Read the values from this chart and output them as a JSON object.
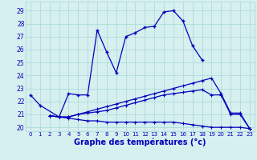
{
  "xlabel": "Graphe des températures (°c)",
  "x_ticks": [
    0,
    1,
    2,
    3,
    4,
    5,
    6,
    7,
    8,
    9,
    10,
    11,
    12,
    13,
    14,
    15,
    16,
    17,
    18,
    19,
    20,
    21,
    22,
    23
  ],
  "ylim": [
    19.7,
    29.7
  ],
  "xlim": [
    -0.5,
    23.5
  ],
  "yticks": [
    20,
    21,
    22,
    23,
    24,
    25,
    26,
    27,
    28,
    29
  ],
  "background_color": "#d6efef",
  "grid_color": "#a8d8d8",
  "line_color": "#0000bb",
  "line1_x": [
    0,
    1,
    3,
    4,
    5,
    6,
    7,
    8,
    9,
    10,
    11,
    12,
    13,
    14,
    15,
    16,
    17,
    18
  ],
  "line1_y": [
    22.5,
    21.7,
    20.8,
    22.6,
    22.5,
    22.5,
    27.5,
    25.8,
    24.2,
    27.0,
    27.3,
    27.7,
    27.8,
    28.9,
    29.0,
    28.2,
    26.3,
    25.2
  ],
  "line2_x": [
    2,
    3,
    4,
    5,
    6,
    7,
    8,
    9,
    10,
    11,
    12,
    13,
    14,
    15,
    16,
    17,
    18,
    19,
    20,
    21,
    22,
    23
  ],
  "line2_y": [
    20.9,
    20.8,
    20.8,
    21.0,
    21.2,
    21.4,
    21.6,
    21.8,
    22.0,
    22.2,
    22.4,
    22.6,
    22.8,
    23.0,
    23.2,
    23.4,
    23.6,
    23.8,
    22.6,
    21.1,
    21.1,
    19.9
  ],
  "line3_x": [
    2,
    3,
    4,
    5,
    6,
    7,
    8,
    9,
    10,
    11,
    12,
    13,
    14,
    15,
    16,
    17,
    18,
    19,
    20,
    21,
    22,
    23
  ],
  "line3_y": [
    20.9,
    20.8,
    20.8,
    21.0,
    21.1,
    21.2,
    21.3,
    21.5,
    21.7,
    21.9,
    22.1,
    22.3,
    22.5,
    22.6,
    22.7,
    22.8,
    22.9,
    22.5,
    22.5,
    21.0,
    21.0,
    19.9
  ],
  "line4_x": [
    2,
    3,
    4,
    5,
    6,
    7,
    8,
    9,
    10,
    11,
    12,
    13,
    14,
    15,
    16,
    17,
    18,
    19,
    20,
    21,
    22,
    23
  ],
  "line4_y": [
    20.9,
    20.8,
    20.7,
    20.6,
    20.5,
    20.5,
    20.4,
    20.4,
    20.4,
    20.4,
    20.4,
    20.4,
    20.4,
    20.4,
    20.3,
    20.2,
    20.1,
    20.0,
    20.0,
    20.0,
    20.0,
    19.9
  ]
}
